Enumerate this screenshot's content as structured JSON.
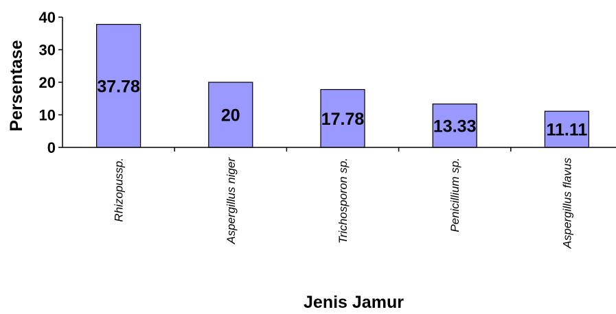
{
  "chart_data": {
    "type": "bar",
    "categories": [
      "Rhizopussp.",
      "Aspergillus niger",
      "Trichosporon sp.",
      "Penicillium sp.",
      "Aspergillus flavus"
    ],
    "values": [
      37.78,
      20,
      17.78,
      13.33,
      11.11
    ],
    "data_labels": [
      "37.78",
      "20",
      "17.78",
      "13.33",
      "11.11"
    ],
    "xlabel": "Jenis Jamur",
    "ylabel": "Persentase",
    "ylim": [
      0,
      40
    ],
    "yticks": [
      0,
      10,
      20,
      30,
      40
    ],
    "grid": false,
    "legend": "none",
    "bar_color": "#9999ff",
    "bar_stroke": "#000000"
  }
}
